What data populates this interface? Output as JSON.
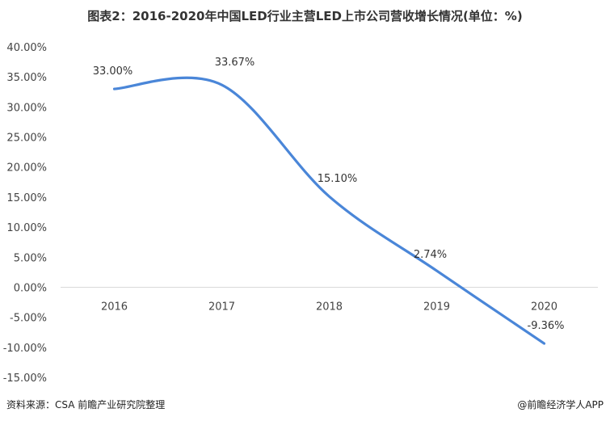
{
  "header": {
    "title": "图表2：2016-2020年中国LED行业主营LED上市公司营收增长情况(单位：%)"
  },
  "footer": {
    "source": "资料来源：CSA 前瞻产业研究院整理",
    "credit": "@前瞻经济学人APP"
  },
  "chart_data": {
    "type": "line",
    "title": "图表2：2016-2020年中国LED行业主营LED上市公司营收增长情况(单位：%)",
    "xlabel": "",
    "ylabel": "",
    "categories": [
      "2016",
      "2017",
      "2018",
      "2019",
      "2020"
    ],
    "series": [
      {
        "values": [
          33.0,
          33.67,
          15.1,
          2.74,
          -9.36
        ],
        "labels": [
          "33.00%",
          "33.67%",
          "15.10%",
          "2.74%",
          "-9.36%"
        ],
        "color": "#4a86d8"
      }
    ],
    "ylim": [
      -15,
      40
    ],
    "yticks": [
      "40.00%",
      "35.00%",
      "30.00%",
      "25.00%",
      "20.00%",
      "15.00%",
      "10.00%",
      "5.00%",
      "0.00%",
      "-5.00%",
      "-10.00%",
      "-15.00%"
    ],
    "ytick_values": [
      40,
      35,
      30,
      25,
      20,
      15,
      10,
      5,
      0,
      -5,
      -10,
      -15
    ],
    "grid": false,
    "smooth": true
  }
}
